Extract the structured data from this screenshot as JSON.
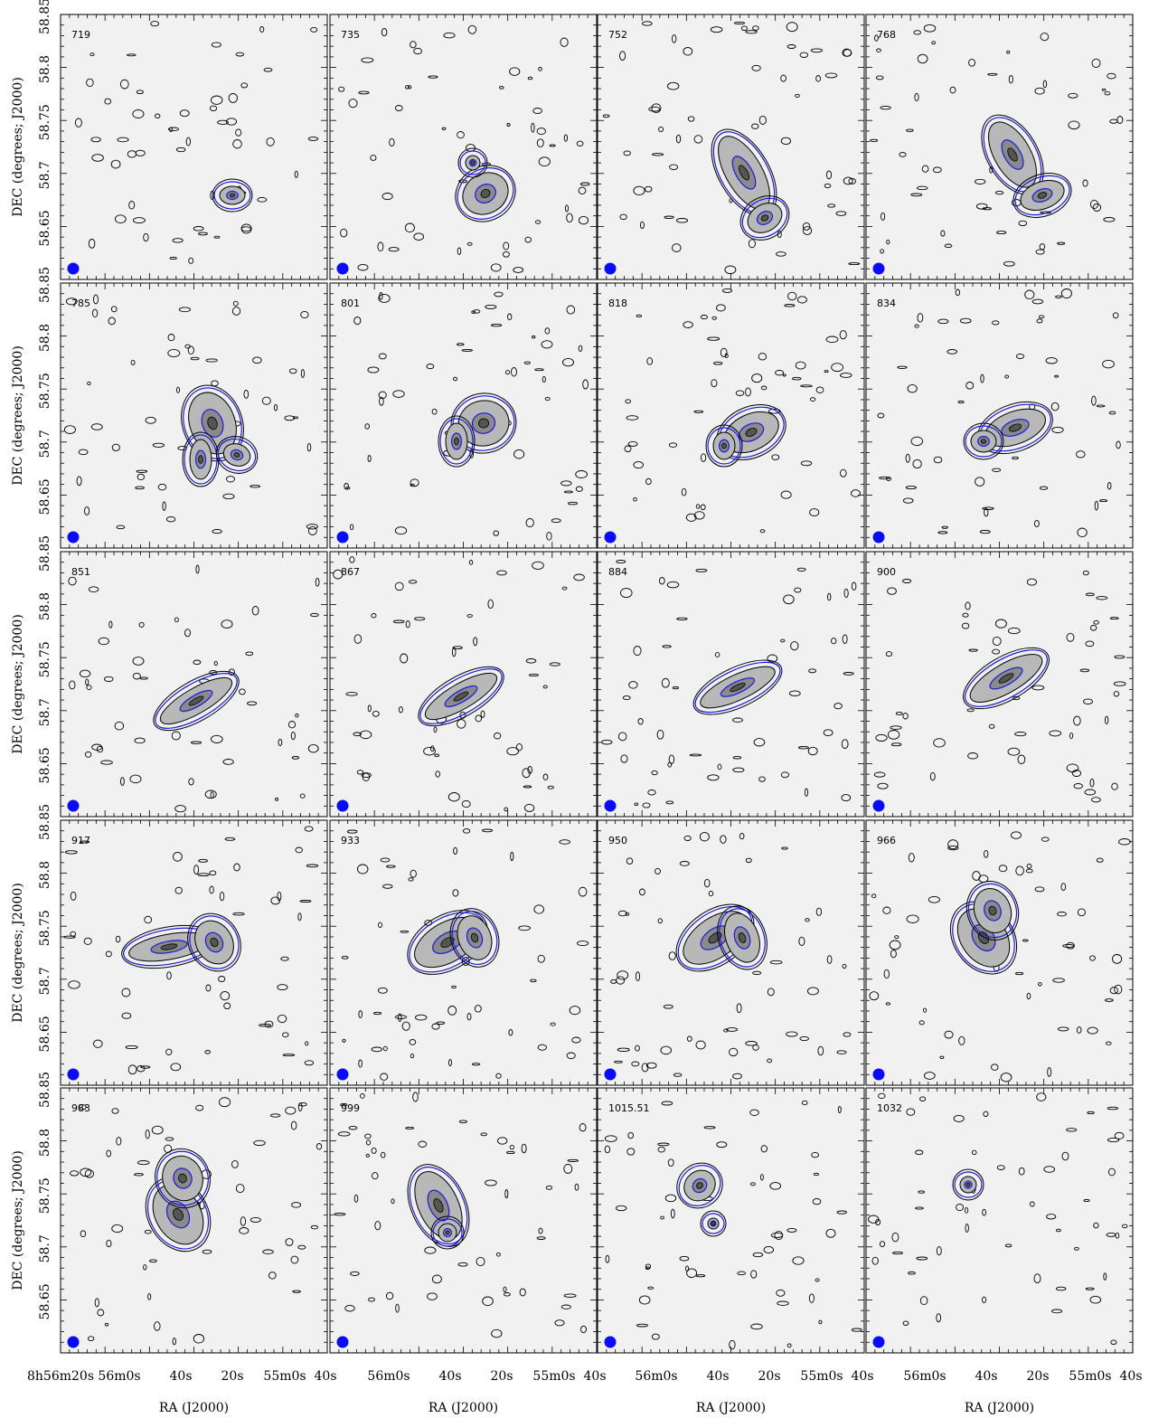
{
  "figure": {
    "y_axis_label": "DEC (degrees; J2000)",
    "x_axis_label": "RA (J2000)",
    "y_ticks": [
      "58.85",
      "58.8",
      "58.75",
      "58.7",
      "58.65"
    ],
    "x_ticks_first": [
      "8h56m20s",
      "56m0s",
      "40s",
      "20s",
      "55m0s",
      "40s"
    ],
    "x_ticks_other": [
      "56m0s",
      "40s",
      "20s",
      "55m0s",
      "40s"
    ],
    "panel_labels": [
      "719",
      "735",
      "752",
      "768",
      "785",
      "801",
      "818",
      "834",
      "851",
      "867",
      "884",
      "900",
      "917",
      "933",
      "950",
      "966",
      "983",
      "999",
      "1015.51",
      "1032"
    ]
  },
  "colors": {
    "background": "#f1f1f1",
    "contour_black": "#000000",
    "contour_blue": "#1a1adc",
    "beam": "#0a0aff",
    "frame": "#000000"
  }
}
